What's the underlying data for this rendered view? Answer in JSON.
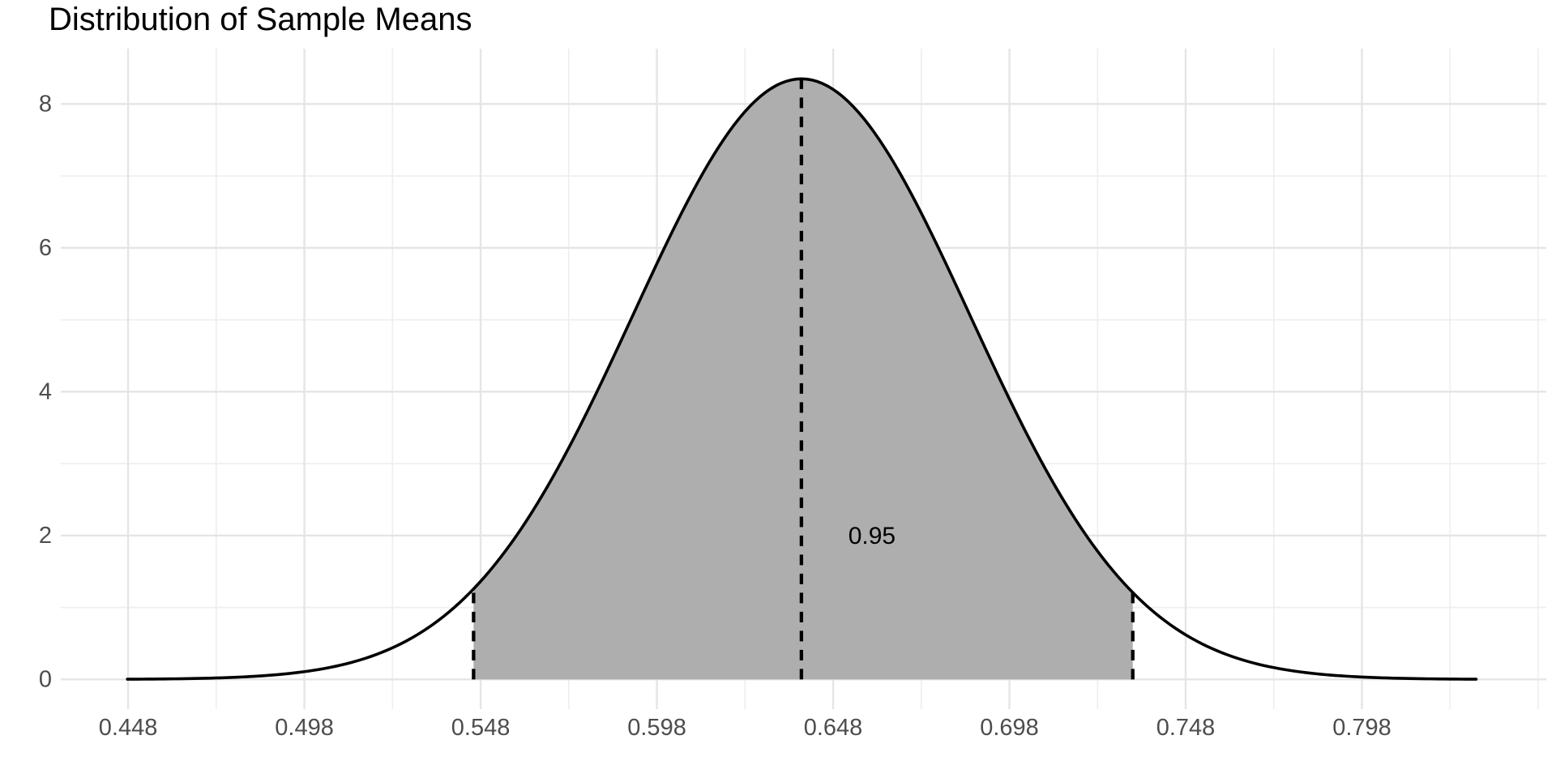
{
  "chart_data": {
    "type": "area",
    "title": "Distribution of Sample Means",
    "xlabel": "",
    "ylabel": "",
    "grid": true,
    "legend_position": "none",
    "distribution": {
      "kind": "normal-density",
      "mean": 0.639,
      "sd": 0.0478,
      "peak_density": 8.35,
      "curve_range": [
        0.4478,
        0.8304
      ]
    },
    "ci": {
      "lower": 0.546,
      "upper": 0.733,
      "level_label": "0.95",
      "label_x": 0.659,
      "label_y": 1.99
    },
    "x_ticks": {
      "values": [
        0.448,
        0.498,
        0.548,
        0.598,
        0.648,
        0.698,
        0.748,
        0.798
      ],
      "labels": [
        "0.448",
        "0.498",
        "0.548",
        "0.598",
        "0.648",
        "0.698",
        "0.748",
        "0.798"
      ]
    },
    "y_ticks": {
      "values": [
        0,
        2,
        4,
        6,
        8
      ],
      "labels": [
        "0",
        "2",
        "4",
        "6",
        "8"
      ]
    },
    "x_minor": [
      0.473,
      0.523,
      0.573,
      0.623,
      0.673,
      0.723,
      0.773,
      0.823,
      0.848
    ],
    "y_minor": [
      1,
      3,
      5,
      7
    ],
    "xlim": [
      0.4289,
      0.8503
    ],
    "ylim": [
      -0.413,
      8.77
    ],
    "colors": {
      "curve": "#000000",
      "area_fill": "#aeaeae",
      "dashed_line": "#000000",
      "grid_major": "#e5e5e5",
      "grid_minor": "#efefef",
      "tick_label": "#4d4d4d",
      "annotation": "#000000",
      "background": "#ffffff"
    }
  }
}
